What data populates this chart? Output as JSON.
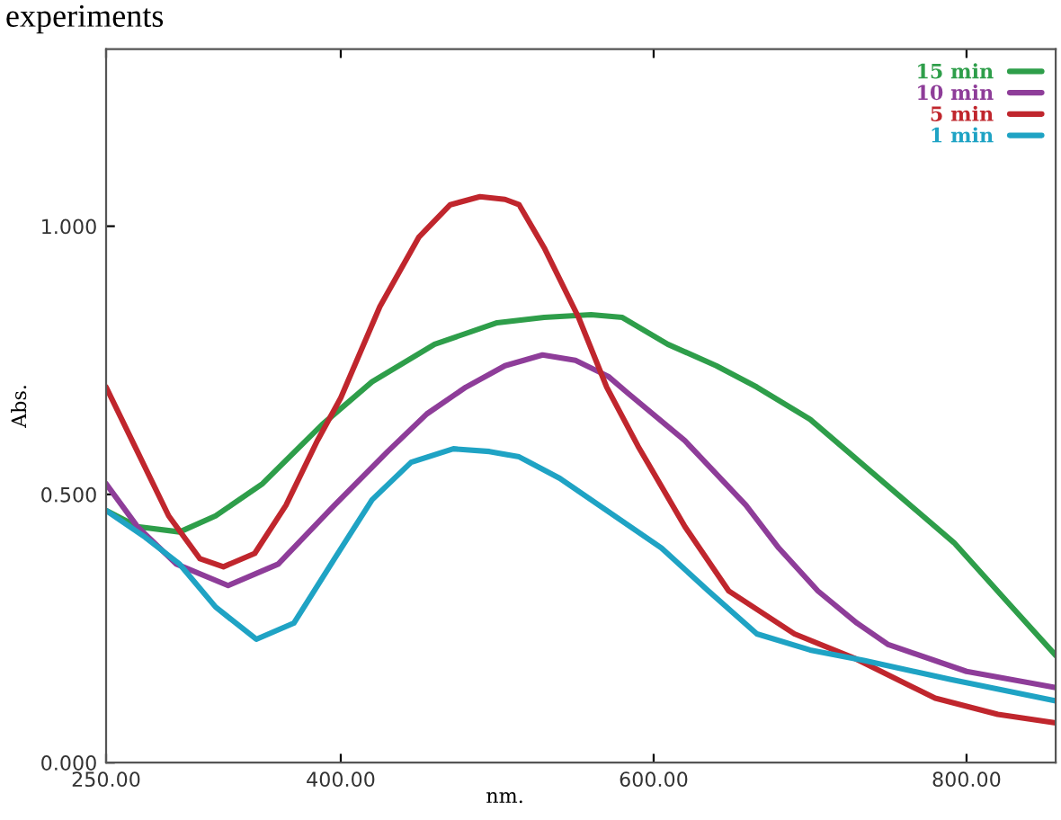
{
  "chart_data": {
    "type": "line",
    "xlabel": "nm.",
    "ylabel": "Abs.",
    "annotations": [
      "experiments"
    ],
    "xlim": [
      250,
      857
    ],
    "ylim": [
      0,
      1.33
    ],
    "xticks": [
      {
        "value": 250,
        "label": "250.00"
      },
      {
        "value": 400,
        "label": "400.00"
      },
      {
        "value": 600,
        "label": "600.00"
      },
      {
        "value": 800,
        "label": "800.00"
      }
    ],
    "yticks": [
      {
        "value": 0,
        "label": "0.000"
      },
      {
        "value": 0.5,
        "label": "0.500"
      },
      {
        "value": 1,
        "label": "1.000"
      }
    ],
    "grid": false,
    "legend": "top right",
    "marker": "none",
    "line_style": "solid",
    "series": [
      {
        "name": "15 min",
        "color": "#2e9e4a",
        "x": [
          250,
          270,
          297,
          320,
          350,
          388,
          420,
          460,
          500,
          530,
          560,
          580,
          609,
          640,
          666,
          700,
          728,
          760,
          792,
          826,
          857
        ],
        "values": [
          0.47,
          0.44,
          0.43,
          0.46,
          0.52,
          0.63,
          0.71,
          0.78,
          0.82,
          0.83,
          0.835,
          0.83,
          0.78,
          0.74,
          0.7,
          0.64,
          0.57,
          0.49,
          0.41,
          0.3,
          0.2
        ]
      },
      {
        "name": "10 min",
        "color": "#8e3d99",
        "x": [
          250,
          270,
          295,
          328,
          360,
          396,
          430,
          455,
          480,
          505,
          529,
          550,
          571,
          583,
          620,
          659,
          680,
          705,
          730,
          750,
          800,
          857
        ],
        "values": [
          0.52,
          0.44,
          0.37,
          0.33,
          0.37,
          0.48,
          0.58,
          0.65,
          0.7,
          0.74,
          0.76,
          0.75,
          0.72,
          0.69,
          0.6,
          0.48,
          0.4,
          0.32,
          0.26,
          0.22,
          0.17,
          0.14
        ]
      },
      {
        "name": "5 min",
        "color": "#c0262d",
        "x": [
          250,
          270,
          290,
          310,
          325,
          345,
          365,
          385,
          400,
          425,
          450,
          470,
          489,
          505,
          514,
          530,
          552,
          570,
          590,
          620,
          648,
          690,
          728,
          780,
          820,
          857
        ],
        "values": [
          0.7,
          0.58,
          0.46,
          0.38,
          0.365,
          0.39,
          0.48,
          0.6,
          0.68,
          0.85,
          0.98,
          1.04,
          1.055,
          1.05,
          1.04,
          0.96,
          0.83,
          0.7,
          0.59,
          0.44,
          0.32,
          0.24,
          0.195,
          0.12,
          0.09,
          0.074
        ]
      },
      {
        "name": "1 min",
        "color": "#1fa3c4",
        "x": [
          250,
          275,
          297,
          320,
          346,
          370,
          396,
          420,
          445,
          472,
          495,
          514,
          540,
          570,
          605,
          635,
          666,
          700,
          735,
          790,
          857
        ],
        "values": [
          0.47,
          0.42,
          0.37,
          0.29,
          0.23,
          0.26,
          0.38,
          0.49,
          0.56,
          0.585,
          0.58,
          0.57,
          0.53,
          0.47,
          0.4,
          0.32,
          0.24,
          0.21,
          0.19,
          0.155,
          0.115
        ]
      }
    ]
  }
}
